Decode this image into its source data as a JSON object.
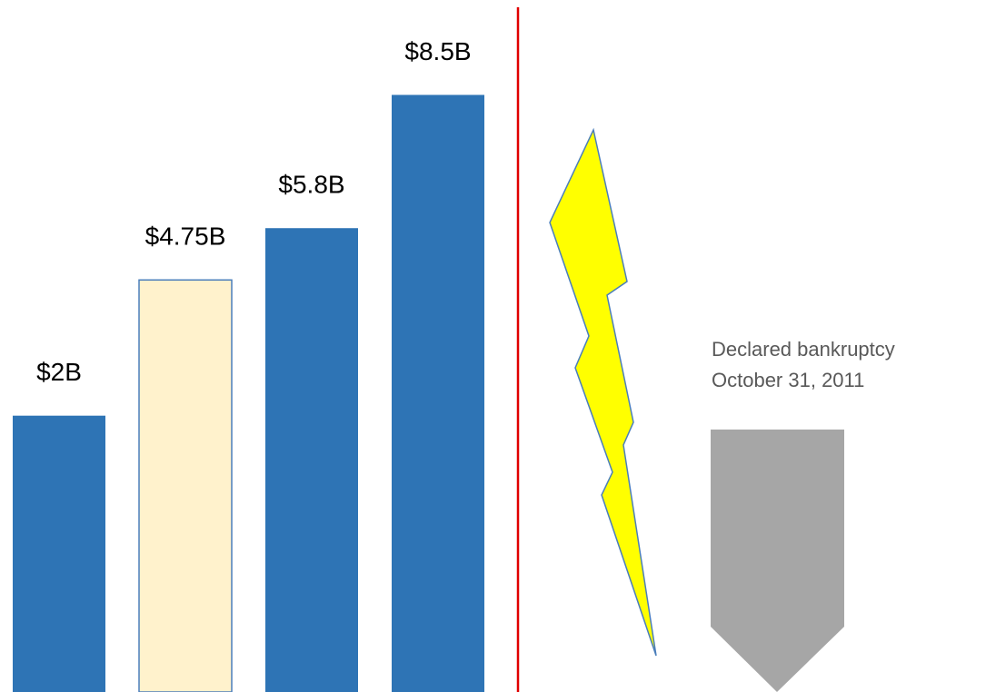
{
  "chart_data": {
    "type": "bar",
    "categories": [
      null,
      null,
      null,
      null
    ],
    "values": [
      2,
      4.75,
      5.8,
      8.5
    ],
    "value_labels": [
      "$2B",
      "$4.75B",
      "$5.8B",
      "$8.5B"
    ],
    "colors": [
      "#2e74b5",
      "#fff2cc",
      "#2e74b5",
      "#2e74b5"
    ],
    "ylim": [
      -3.6,
      10
    ],
    "annotation": [
      "Declared bankruptcy",
      "October 31, 2011"
    ]
  }
}
